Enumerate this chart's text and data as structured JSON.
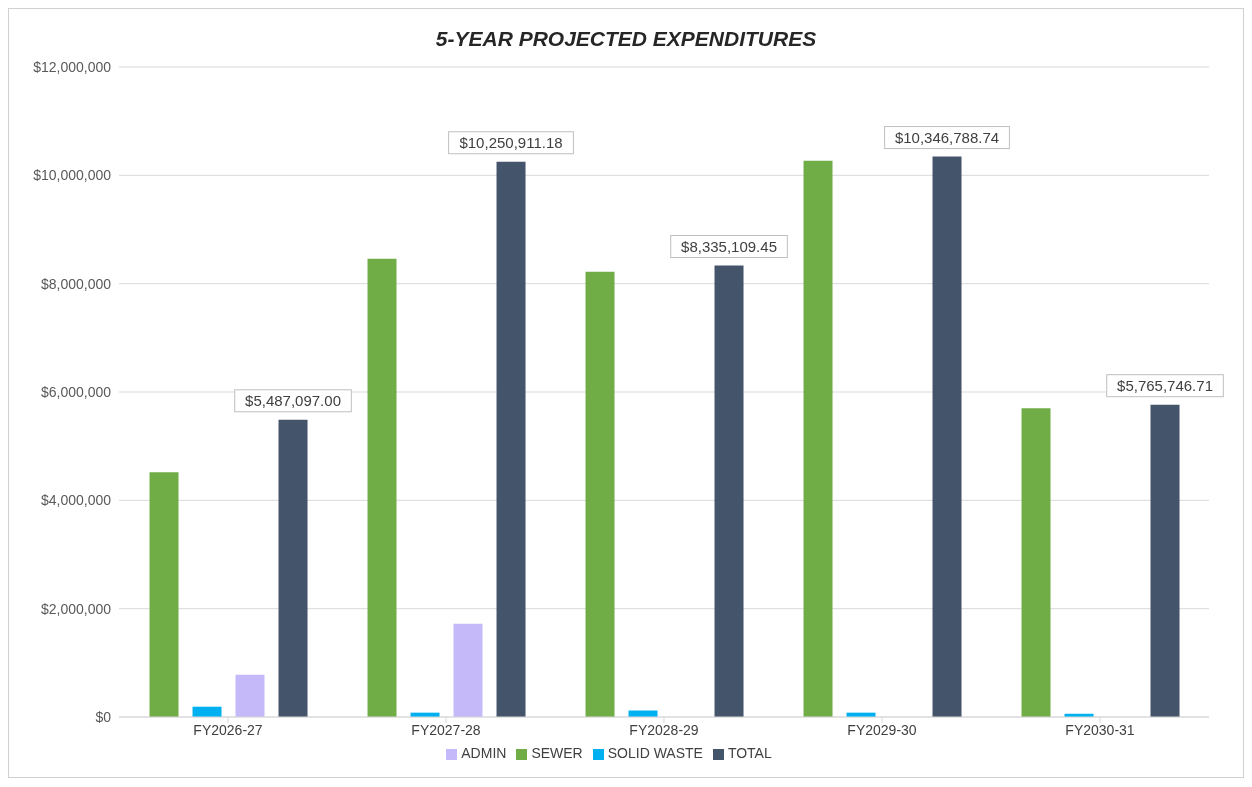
{
  "chart_data": {
    "type": "bar",
    "title": "5-YEAR PROJECTED EXPENDITURES",
    "categories": [
      "FY2026-27",
      "FY2027-28",
      "FY2028-29",
      "FY2029-30",
      "FY2030-31"
    ],
    "series": [
      {
        "name": "SEWER",
        "color": "#70ad47",
        "values": [
          4520000,
          8460000,
          8220000,
          10270000,
          5700000
        ]
      },
      {
        "name": "SOLID WASTE",
        "color": "#00b0f0",
        "values": [
          190000,
          80000,
          120000,
          80000,
          60000
        ]
      },
      {
        "name": "ADMIN",
        "color": "#c5b9fa",
        "values": [
          780000,
          1720000,
          null,
          null,
          null
        ]
      },
      {
        "name": "TOTAL",
        "color": "#44546a",
        "values": [
          5487097.0,
          10250911.18,
          8335109.45,
          10346788.74,
          5765746.71
        ],
        "value_labels": [
          "$5,487,097.00",
          "$10,250,911.18",
          "$8,335,109.45",
          "$10,346,788.74",
          "$5,765,746.71"
        ]
      }
    ],
    "ylim": [
      0,
      12000000
    ],
    "yticks": [
      {
        "value": 0,
        "label": "$0"
      },
      {
        "value": 2000000,
        "label": "$2,000,000"
      },
      {
        "value": 4000000,
        "label": "$4,000,000"
      },
      {
        "value": 6000000,
        "label": "$6,000,000"
      },
      {
        "value": 8000000,
        "label": "$8,000,000"
      },
      {
        "value": 10000000,
        "label": "$10,000,000"
      },
      {
        "value": 12000000,
        "label": "$12,000,000"
      }
    ],
    "grid": "y",
    "legend": "bottom"
  }
}
